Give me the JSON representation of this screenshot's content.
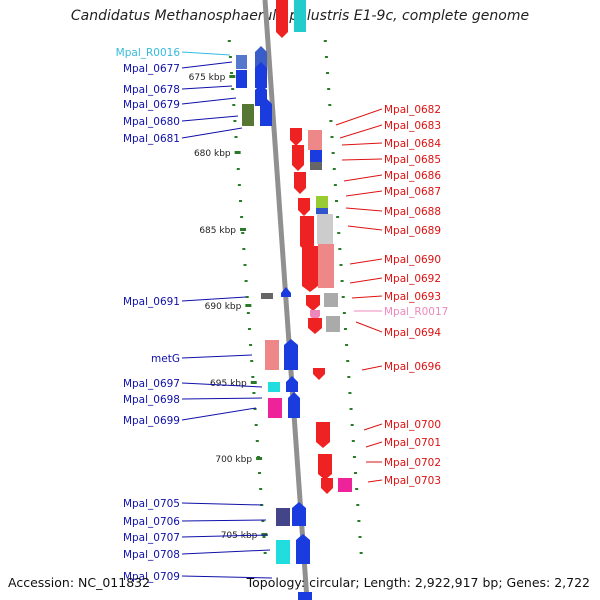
{
  "title": "Candidatus Methanosphaerula palustris E1-9c, complete genome",
  "footer": {
    "accession": "Accession: NC_011832",
    "topology": "Topology: circular; Length: 2,922,917 bp; Genes: 2,722"
  },
  "colors": {
    "backbone": "#909090",
    "scale_dots": "#2a7a2a",
    "left_label": "#1010aa",
    "right_label": "#dd1111",
    "rna_left": "#33bbdd",
    "rna_right": "#ee88bb"
  },
  "kbp_ticks": [
    "675 kbp",
    "680 kbp",
    "685 kbp",
    "690 kbp",
    "695 kbp",
    "700 kbp",
    "705 kbp"
  ],
  "left_labels": [
    {
      "text": "Mpal_R0016",
      "kind": "rna"
    },
    {
      "text": "Mpal_0677",
      "kind": "gene"
    },
    {
      "text": "Mpal_0678",
      "kind": "gene"
    },
    {
      "text": "Mpal_0679",
      "kind": "gene"
    },
    {
      "text": "Mpal_0680",
      "kind": "gene"
    },
    {
      "text": "Mpal_0681",
      "kind": "gene"
    },
    {
      "text": "Mpal_0691",
      "kind": "gene"
    },
    {
      "text": "metG",
      "kind": "gene"
    },
    {
      "text": "Mpal_0697",
      "kind": "gene"
    },
    {
      "text": "Mpal_0698",
      "kind": "gene"
    },
    {
      "text": "Mpal_0699",
      "kind": "gene"
    },
    {
      "text": "Mpal_0705",
      "kind": "gene"
    },
    {
      "text": "Mpal_0706",
      "kind": "gene"
    },
    {
      "text": "Mpal_0707",
      "kind": "gene"
    },
    {
      "text": "Mpal_0708",
      "kind": "gene"
    },
    {
      "text": "Mpal_0709",
      "kind": "gene"
    }
  ],
  "right_labels": [
    {
      "text": "Mpal_0682",
      "kind": "gene"
    },
    {
      "text": "Mpal_0683",
      "kind": "gene"
    },
    {
      "text": "Mpal_0684",
      "kind": "gene"
    },
    {
      "text": "Mpal_0685",
      "kind": "gene"
    },
    {
      "text": "Mpal_0686",
      "kind": "gene"
    },
    {
      "text": "Mpal_0687",
      "kind": "gene"
    },
    {
      "text": "Mpal_0688",
      "kind": "gene"
    },
    {
      "text": "Mpal_0689",
      "kind": "gene"
    },
    {
      "text": "Mpal_0690",
      "kind": "gene"
    },
    {
      "text": "Mpal_0692",
      "kind": "gene"
    },
    {
      "text": "Mpal_0693",
      "kind": "gene"
    },
    {
      "text": "Mpal_R0017",
      "kind": "rna"
    },
    {
      "text": "Mpal_0694",
      "kind": "gene"
    },
    {
      "text": "Mpal_0696",
      "kind": "gene"
    },
    {
      "text": "Mpal_0700",
      "kind": "gene"
    },
    {
      "text": "Mpal_0701",
      "kind": "gene"
    },
    {
      "text": "Mpal_0702",
      "kind": "gene"
    },
    {
      "text": "Mpal_0703",
      "kind": "gene"
    }
  ]
}
